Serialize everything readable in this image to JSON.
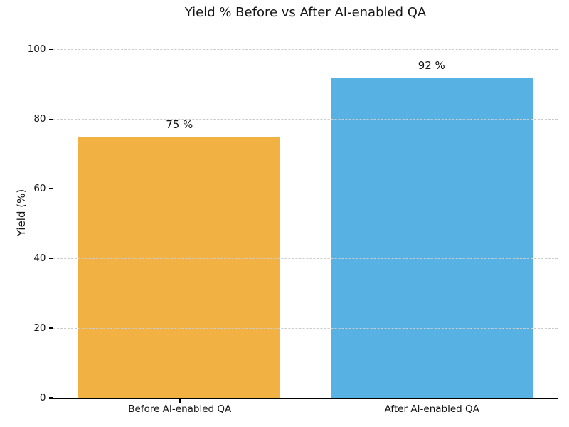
{
  "figure": {
    "title": "Yield % Before vs After AI-enabled QA",
    "y_axis_label": "Yield (%)"
  },
  "chart_data": {
    "type": "bar",
    "title": "Yield % Before vs After AI-enabled QA",
    "categories": [
      "Before AI-enabled QA",
      "After AI-enabled QA"
    ],
    "values": [
      75,
      92
    ],
    "bar_labels": [
      "75 %",
      "92 %"
    ],
    "bar_colors": [
      "#f2b243",
      "#57b1e3"
    ],
    "xlabel": "",
    "ylabel": "Yield (%)",
    "yticks": [
      0,
      20,
      40,
      60,
      80,
      100
    ],
    "ylim": [
      0,
      106
    ],
    "bar_width_fraction": 0.8,
    "grid": {
      "axis": "y",
      "style": "dashed",
      "color": "#cccccc",
      "over_bars": true
    },
    "legend": false,
    "spines": [
      "left",
      "bottom"
    ],
    "background": "#ffffff",
    "text_color": "#141414"
  }
}
